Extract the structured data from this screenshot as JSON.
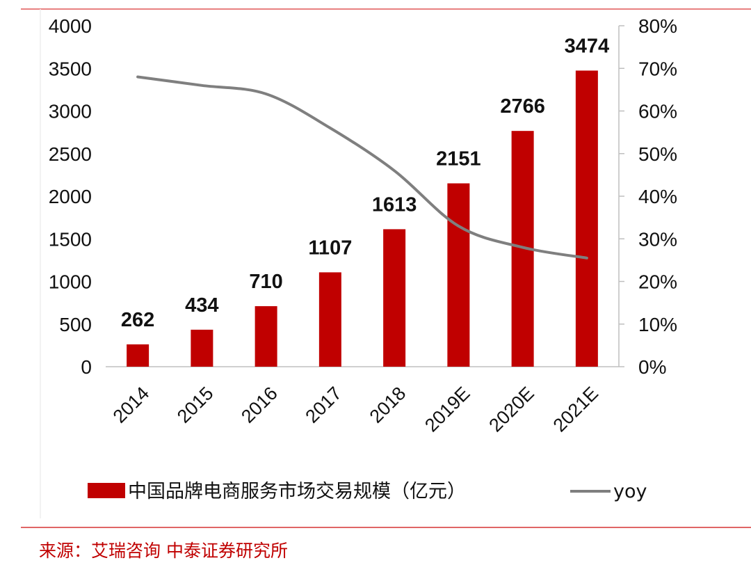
{
  "chart_data": {
    "type": "bar",
    "categories": [
      "2014",
      "2015",
      "2016",
      "2017",
      "2018",
      "2019E",
      "2020E",
      "2021E"
    ],
    "series": [
      {
        "name": "中国品牌电商服务市场交易规模（亿元）",
        "type": "bar",
        "axis": "left",
        "color": "#c00000",
        "values": [
          262,
          434,
          710,
          1107,
          1613,
          2151,
          2766,
          3474
        ],
        "data_labels": [
          "262",
          "434",
          "710",
          "1107",
          "1613",
          "2151",
          "2766",
          "3474"
        ]
      },
      {
        "name": "yoy",
        "type": "line",
        "axis": "right",
        "color": "#7f7f7f",
        "values": [
          0.68,
          0.66,
          0.64,
          0.56,
          0.46,
          0.33,
          0.28,
          0.255
        ]
      }
    ],
    "y_left": {
      "ylim": [
        0,
        4000
      ],
      "ticks": [
        "0",
        "500",
        "1000",
        "1500",
        "2000",
        "2500",
        "3000",
        "3500",
        "4000"
      ]
    },
    "y_right": {
      "ylim": [
        0,
        0.8
      ],
      "ticks": [
        "0%",
        "10%",
        "20%",
        "30%",
        "40%",
        "50%",
        "60%",
        "70%",
        "80%"
      ]
    },
    "x_tick_rotation_deg": -45,
    "grid": false,
    "legend": "bottom",
    "title": "",
    "xlabel": "",
    "ylabel": ""
  },
  "legend": {
    "bar_label": "中国品牌电商服务市场交易规模（亿元）",
    "line_label": "yoy"
  },
  "source": "来源：艾瑞咨询 中泰证券研究所",
  "colors": {
    "bar": "#c00000",
    "line": "#7f7f7f",
    "rule": "#e06666",
    "source_text": "#c00000"
  }
}
